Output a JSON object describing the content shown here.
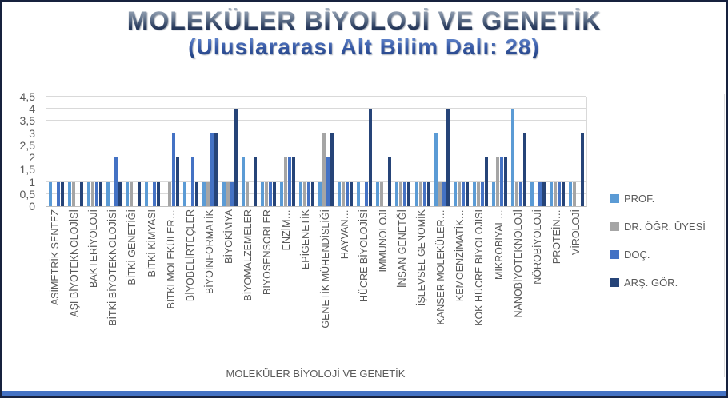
{
  "title": "MOLEKÜLER BİYOLOJİ VE GENETİK",
  "subtitle": "(Uluslararası Alt Bilim Dalı: 28)",
  "chart_data": {
    "type": "bar",
    "title": "MOLEKÜLER BİYOLOJİ VE GENETİK",
    "subtitle": "(Uluslararası Alt Bilim Dalı: 28)",
    "xlabel": "MOLEKÜLER BİYOLOJİ VE GENETİK",
    "ylabel": "",
    "ylim": [
      0,
      4.5
    ],
    "grid": true,
    "legend_position": "right",
    "y_ticks": [
      "0",
      "0,5",
      "1",
      "1,5",
      "2",
      "2,5",
      "3",
      "3,5",
      "4",
      "4,5"
    ],
    "categories": [
      "ASİMETRİK SENTEZ",
      "AŞI BİYOTEKNOLOJİSİ",
      "BAKTERİYOLOJİ",
      "BİTKİ BİYOTEKNOLOJİSİ",
      "BİTKİ GENETİĞİ",
      "BİTKİ KİMYASI",
      "BİTKİ MOLEKÜLER…",
      "BİYOBELİRTEÇLER",
      "BİYOİNFORMATİK",
      "BİYOKİMYA",
      "BİYOMALZEMELER",
      "BİYOSENSÖRLER",
      "ENZİM…",
      "EPİGENETİK",
      "GENETİK MÜHENDİSLİĞİ",
      "HAYVAN…",
      "HÜCRE BİYOLOJİSİ",
      "İMMUNOLOJİ",
      "İNSAN GENETĞİ",
      "İŞLEVSEL GENOMİK",
      "KANSER MOLEKÜLER…",
      "KEMOENZİMATİK…",
      "KÖK HÜCRE BİYOLOJİSİ",
      "MİKROBİYAL…",
      "NANOBİYOTEKNOLOJİ",
      "NÖROBİYOLOJİ",
      "PROTEİN…",
      "VİROLOJİ"
    ],
    "series": [
      {
        "name": "PROF.",
        "color": "#5B9BD5",
        "values": [
          1,
          1,
          1,
          1,
          1,
          1,
          0,
          1,
          1,
          1,
          2,
          1,
          1,
          1,
          1,
          1,
          1,
          1,
          1,
          1,
          3,
          1,
          1,
          1,
          4,
          1,
          1,
          1
        ]
      },
      {
        "name": "DR. ÖĞR. ÜYESİ",
        "color": "#A5A5A5",
        "values": [
          0,
          1,
          1,
          0,
          1,
          0,
          1,
          0,
          1,
          1,
          1,
          1,
          2,
          1,
          3,
          1,
          0,
          1,
          1,
          1,
          1,
          1,
          1,
          2,
          1,
          0,
          1,
          1
        ]
      },
      {
        "name": "DOÇ.",
        "color": "#4472C4",
        "values": [
          1,
          0,
          1,
          2,
          0,
          1,
          3,
          2,
          3,
          1,
          0,
          1,
          2,
          1,
          2,
          1,
          1,
          0,
          1,
          1,
          1,
          1,
          1,
          2,
          1,
          1,
          1,
          0
        ]
      },
      {
        "name": "ARŞ. GÖR.",
        "color": "#264478",
        "values": [
          1,
          1,
          1,
          1,
          1,
          1,
          2,
          1,
          3,
          4,
          2,
          1,
          2,
          1,
          3,
          1,
          4,
          2,
          1,
          1,
          4,
          1,
          2,
          2,
          3,
          1,
          1,
          3
        ]
      }
    ]
  },
  "colors": {
    "grid": "#d9d9d9",
    "axis": "#bfbfbf",
    "text": "#595959",
    "bottom_strip": "#4472C4"
  }
}
